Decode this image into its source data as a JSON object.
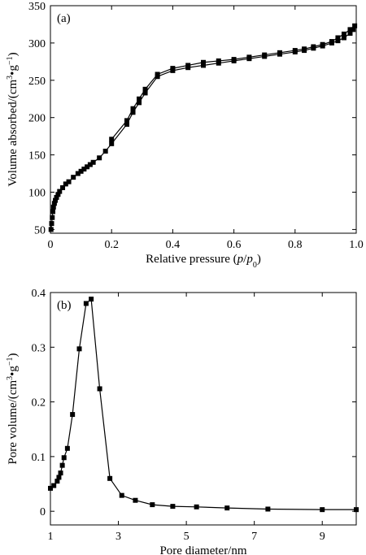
{
  "chart_data": [
    {
      "type": "line",
      "panel_label": "(a)",
      "xlabel_parts": [
        "Relative pressure (",
        "p",
        "/",
        "p",
        "0",
        ")"
      ],
      "ylabel_parts": [
        "Volume absorbed/(cm",
        "3",
        "•g",
        "−1",
        ")"
      ],
      "xlim": [
        0,
        1.0
      ],
      "ylim": [
        45,
        350
      ],
      "xticks": [
        0,
        0.2,
        0.4,
        0.6,
        0.8,
        1.0
      ],
      "xtick_labels": [
        "0",
        "0.2",
        "0.4",
        "0.6",
        "0.8",
        "1.0"
      ],
      "yticks": [
        50,
        100,
        150,
        200,
        250,
        300,
        350
      ],
      "ytick_labels": [
        "50",
        "100",
        "150",
        "200",
        "250",
        "300",
        "350"
      ],
      "grid": false,
      "series": [
        {
          "x": [
            0.002,
            0.004,
            0.006,
            0.008,
            0.01,
            0.013,
            0.016,
            0.02,
            0.025,
            0.03,
            0.04,
            0.05,
            0.06,
            0.075,
            0.09,
            0.1,
            0.11,
            0.12,
            0.13,
            0.14,
            0.16,
            0.18,
            0.2,
            0.25,
            0.27,
            0.29,
            0.31,
            0.35,
            0.4,
            0.45,
            0.5,
            0.55,
            0.6,
            0.65,
            0.7,
            0.75,
            0.8,
            0.83,
            0.86,
            0.89,
            0.92,
            0.94,
            0.96,
            0.98,
            0.99
          ],
          "y": [
            50,
            58,
            66,
            74,
            80,
            85,
            89,
            93,
            97,
            101,
            106,
            111,
            114,
            120,
            125,
            128,
            131,
            134,
            137,
            140,
            146,
            155,
            165,
            191,
            207,
            220,
            233,
            255,
            263,
            267,
            270,
            273,
            276,
            279,
            282,
            285,
            288,
            290,
            293,
            296,
            300,
            303,
            307,
            313,
            318
          ]
        },
        {
          "x": [
            0.2,
            0.25,
            0.27,
            0.29,
            0.31,
            0.35,
            0.4,
            0.45,
            0.5,
            0.55,
            0.6,
            0.65,
            0.7,
            0.75,
            0.8,
            0.83,
            0.86,
            0.89,
            0.92,
            0.94,
            0.96,
            0.98,
            0.995
          ],
          "y": [
            171,
            196,
            212,
            225,
            238,
            258,
            266,
            270,
            274,
            276,
            278,
            281,
            284,
            287,
            290,
            292,
            295,
            298,
            302,
            307,
            312,
            318,
            323
          ]
        }
      ]
    },
    {
      "type": "line",
      "panel_label": "(b)",
      "xlabel_parts": [
        "Pore diameter/nm"
      ],
      "ylabel_parts": [
        "Pore volume/(cm",
        "3",
        "•g",
        "−1",
        ")"
      ],
      "xlim": [
        1,
        10
      ],
      "ylim": [
        -0.025,
        0.4
      ],
      "xticks": [
        1,
        3,
        5,
        7,
        9
      ],
      "xtick_labels": [
        "1",
        "3",
        "5",
        "7",
        "9"
      ],
      "yticks": [
        0,
        0.1,
        0.2,
        0.3,
        0.4
      ],
      "ytick_labels": [
        "0",
        "0.1",
        "0.2",
        "0.3",
        "0.4"
      ],
      "grid": false,
      "series": [
        {
          "x": [
            1.0,
            1.1,
            1.2,
            1.25,
            1.3,
            1.35,
            1.4,
            1.5,
            1.65,
            1.85,
            2.05,
            2.2,
            2.45,
            2.75,
            3.1,
            3.5,
            4.0,
            4.6,
            5.3,
            6.2,
            7.4,
            9.0,
            10.0
          ],
          "y": [
            0.042,
            0.047,
            0.055,
            0.062,
            0.07,
            0.084,
            0.098,
            0.115,
            0.177,
            0.297,
            0.38,
            0.388,
            0.224,
            0.06,
            0.029,
            0.02,
            0.012,
            0.009,
            0.008,
            0.006,
            0.004,
            0.003,
            0.003
          ]
        }
      ]
    }
  ]
}
